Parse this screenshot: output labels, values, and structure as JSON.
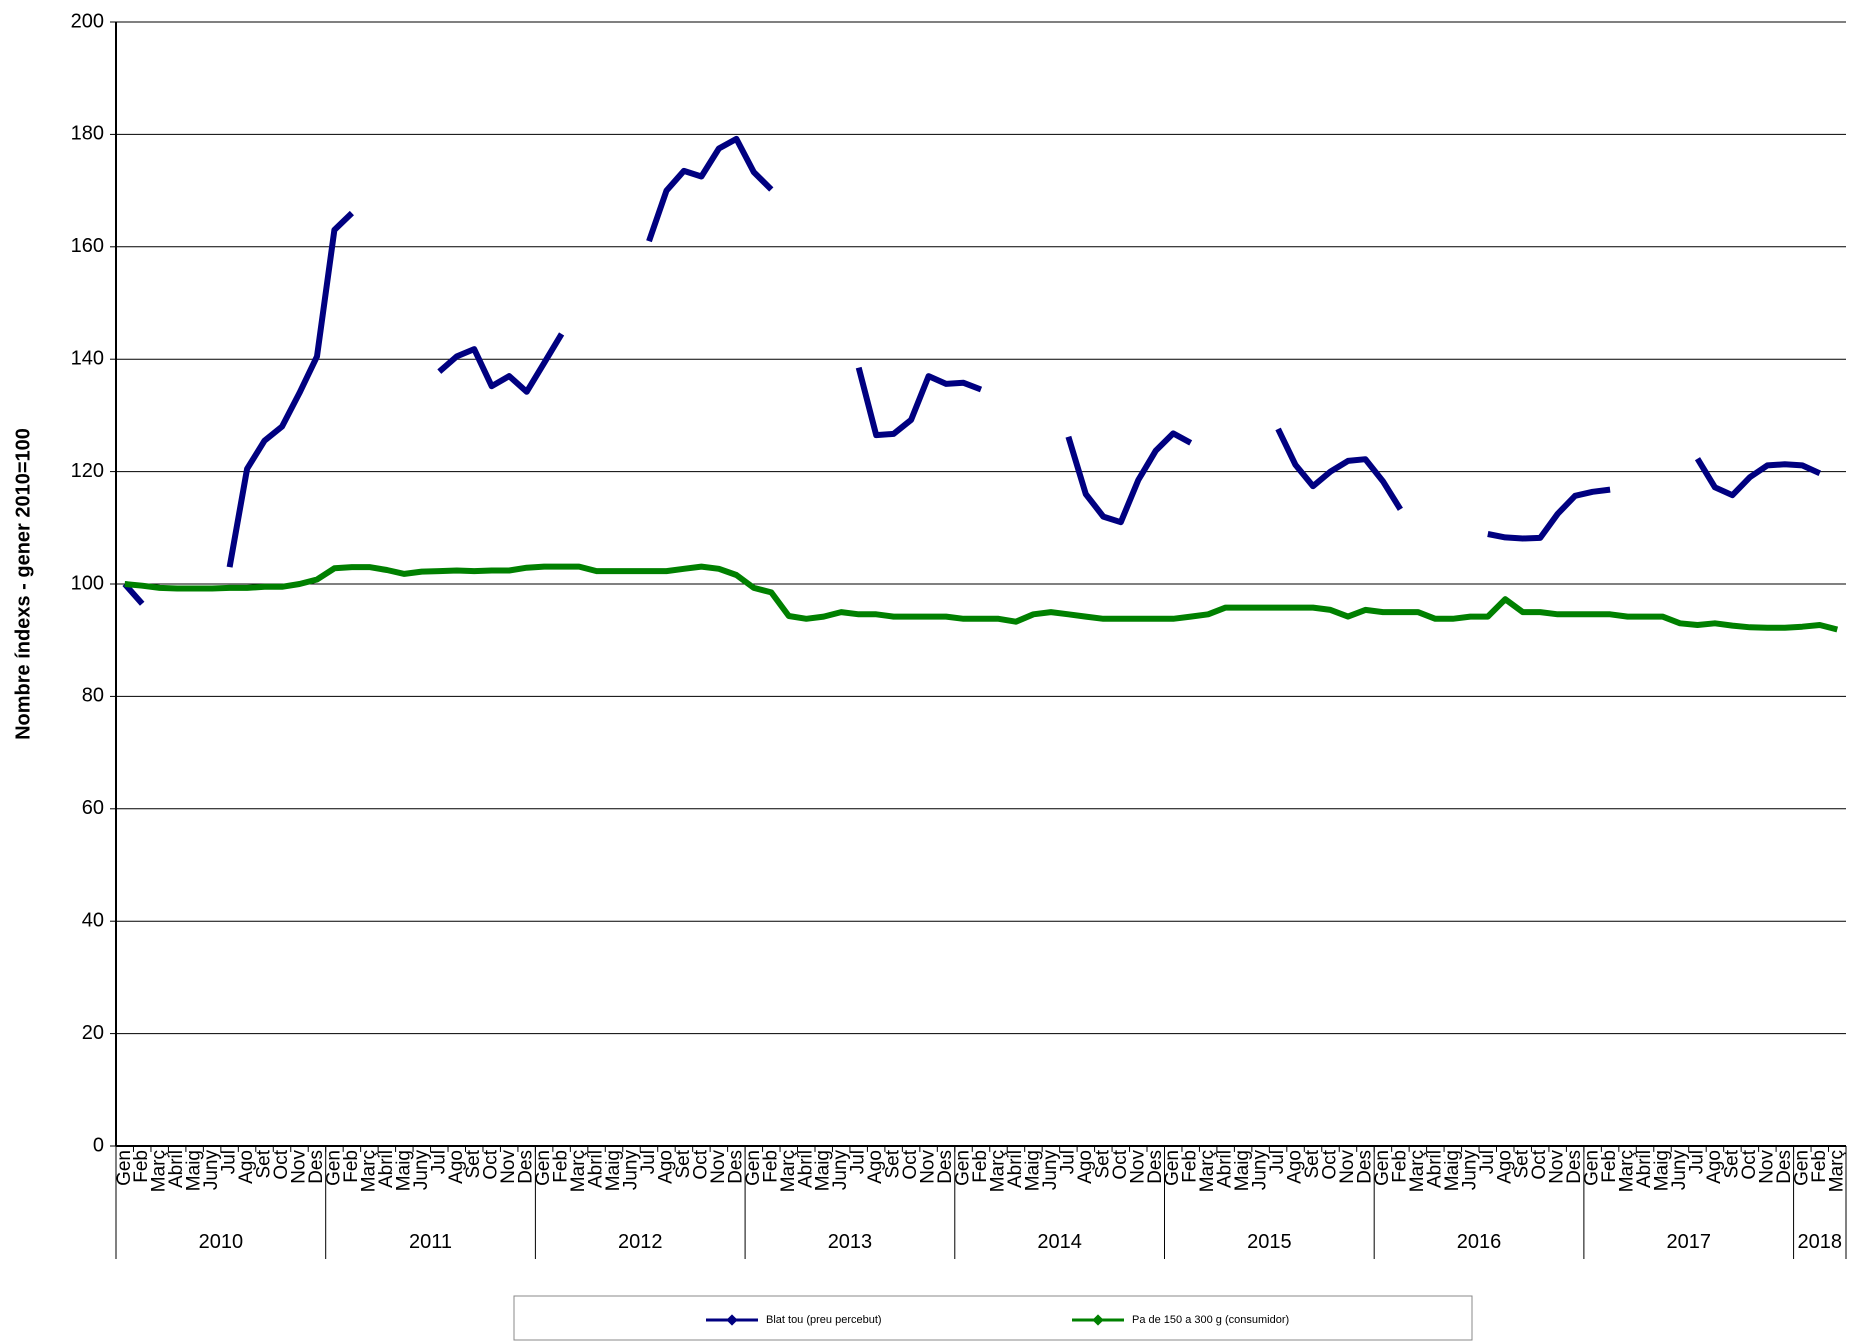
{
  "chart_data": {
    "type": "line",
    "y_label": "Nombre índexs - gener 2010=100",
    "categories": [
      "Gen",
      "Feb",
      "Març",
      "Abril",
      "Maig",
      "Juny",
      "Jul",
      "Ago",
      "Set",
      "Oct",
      "Nov",
      "Des",
      "Gen",
      "Feb",
      "Març",
      "Abril",
      "Maig",
      "Juny",
      "Jul",
      "Ago",
      "Set",
      "Oct",
      "Nov",
      "Des",
      "Gen",
      "Feb",
      "Març",
      "Abril",
      "Maig",
      "Juny",
      "Jul",
      "Ago",
      "Set",
      "Oct",
      "Nov",
      "Des",
      "Gen",
      "Feb",
      "Març",
      "Abril",
      "Maig",
      "Juny",
      "Jul",
      "Ago",
      "Set",
      "Oct",
      "Nov",
      "Des",
      "Gen",
      "Feb",
      "Març",
      "Abril",
      "Maig",
      "Juny",
      "Jul",
      "Ago",
      "Set",
      "Oct",
      "Nov",
      "Des",
      "Gen",
      "Feb",
      "Març",
      "Abril",
      "Maig",
      "Juny",
      "Jul",
      "Ago",
      "Set",
      "Oct",
      "Nov",
      "Des",
      "Gen",
      "Feb",
      "Març",
      "Abril",
      "Maig",
      "Juny",
      "Jul",
      "Ago",
      "Set",
      "Oct",
      "Nov",
      "Des",
      "Gen",
      "Feb",
      "Març",
      "Abril",
      "Maig",
      "Juny",
      "Jul",
      "Ago",
      "Set",
      "Oct",
      "Nov",
      "Des",
      "Gen",
      "Feb",
      "Març"
    ],
    "years": [
      "2010",
      "2011",
      "2012",
      "2013",
      "2014",
      "2015",
      "2016",
      "2017",
      "2018"
    ],
    "series": [
      {
        "name": "Blat tou (preu percebut)",
        "color": "#000080",
        "values": [
          100,
          96.5,
          null,
          null,
          null,
          null,
          103,
          120.5,
          125.5,
          128,
          134,
          140.5,
          163,
          166,
          null,
          null,
          null,
          null,
          137.8,
          140.5,
          141.8,
          135.2,
          137,
          134.2,
          139.3,
          144.5,
          null,
          null,
          null,
          null,
          161,
          170,
          173.5,
          172.5,
          177.5,
          179.2,
          173.3,
          170.2,
          null,
          null,
          null,
          null,
          138.5,
          126.5,
          126.7,
          129.2,
          137,
          135.6,
          135.8,
          134.6,
          null,
          null,
          null,
          null,
          126.2,
          116,
          112,
          111,
          118.5,
          123.7,
          126.8,
          125.1,
          null,
          null,
          null,
          null,
          127.6,
          121.2,
          117.4,
          120,
          121.9,
          122.2,
          118.3,
          113.3,
          null,
          null,
          null,
          null,
          108.9,
          108.3,
          108.1,
          108.2,
          112.5,
          115.7,
          116.4,
          116.8,
          null,
          null,
          null,
          null,
          122.3,
          117.2,
          115.8,
          119,
          121.1,
          121.3,
          121.1,
          119.7,
          null
        ]
      },
      {
        "name": "Pa de 150 a 300 g (consumidor)",
        "color": "#008000",
        "values": [
          100,
          99.7,
          99.3,
          99.2,
          99.2,
          99.2,
          99.3,
          99.3,
          99.5,
          99.5,
          100,
          100.8,
          102.8,
          103,
          103,
          102.5,
          101.8,
          102.2,
          102.3,
          102.4,
          102.3,
          102.4,
          102.4,
          102.9,
          103.1,
          103.1,
          103.1,
          102.3,
          102.3,
          102.3,
          102.3,
          102.3,
          102.7,
          103.1,
          102.7,
          101.6,
          99.3,
          98.5,
          94.3,
          93.8,
          94.2,
          95,
          94.6,
          94.6,
          94.2,
          94.2,
          94.2,
          94.2,
          93.8,
          93.8,
          93.8,
          93.3,
          94.6,
          95,
          94.6,
          94.2,
          93.8,
          93.8,
          93.8,
          93.8,
          93.8,
          94.2,
          94.6,
          95.8,
          95.8,
          95.8,
          95.8,
          95.8,
          95.8,
          95.4,
          94.2,
          95.4,
          95,
          95,
          95,
          93.8,
          93.8,
          94.2,
          94.2,
          97.3,
          95,
          95,
          94.6,
          94.6,
          94.6,
          94.6,
          94.2,
          94.2,
          94.2,
          93,
          92.7,
          93,
          92.6,
          92.3,
          92.2,
          92.2,
          92.4,
          92.7,
          91.9
        ]
      }
    ],
    "ylim": [
      0,
      200
    ],
    "yticks": [
      0,
      20,
      40,
      60,
      80,
      100,
      120,
      140,
      160,
      180,
      200
    ],
    "grid": true,
    "legend": "bottom"
  }
}
